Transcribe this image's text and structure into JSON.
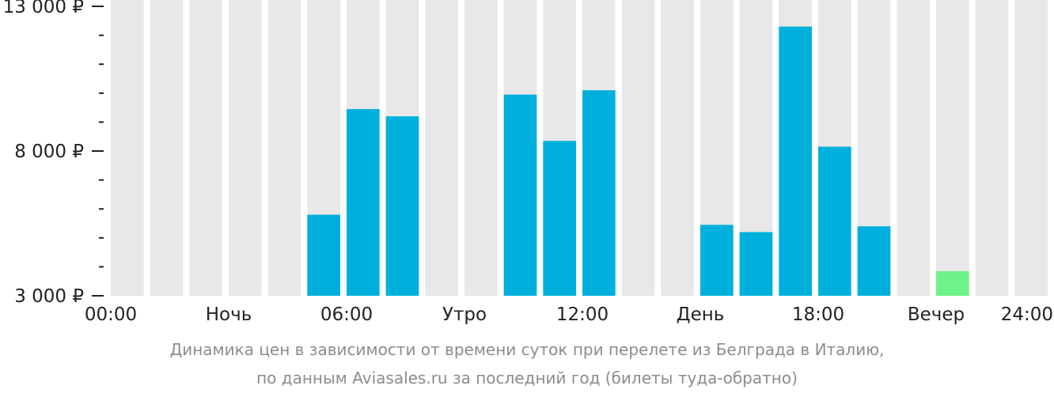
{
  "chart_data": {
    "type": "bar",
    "categories": [
      "00:00",
      "01:00",
      "02:00",
      "03:00",
      "04:00",
      "05:00",
      "06:00",
      "07:00",
      "08:00",
      "09:00",
      "10:00",
      "11:00",
      "12:00",
      "13:00",
      "14:00",
      "15:00",
      "16:00",
      "17:00",
      "18:00",
      "19:00",
      "20:00",
      "21:00",
      "22:00",
      "23:00"
    ],
    "values": [
      null,
      null,
      null,
      null,
      null,
      5800,
      9450,
      9200,
      null,
      null,
      9950,
      8350,
      10100,
      null,
      null,
      5450,
      5200,
      12300,
      8150,
      5400,
      null,
      3850,
      null,
      null
    ],
    "highlight_index": 21,
    "ylim": [
      3000,
      13000
    ],
    "yticks": [
      {
        "value": 13000,
        "label": "13 000 ₽"
      },
      {
        "value": 8000,
        "label": "8 000 ₽"
      },
      {
        "value": 3000,
        "label": "3 000 ₽"
      }
    ],
    "minor_yticks": [
      12000,
      11000,
      10000,
      9000,
      7000,
      6000,
      5000,
      4000
    ],
    "xticks": [
      {
        "position": 0,
        "label": "00:00"
      },
      {
        "position": 3,
        "label": "Ночь"
      },
      {
        "position": 6,
        "label": "06:00"
      },
      {
        "position": 9,
        "label": "Утро"
      },
      {
        "position": 12,
        "label": "12:00"
      },
      {
        "position": 15,
        "label": "День"
      },
      {
        "position": 18,
        "label": "18:00"
      },
      {
        "position": 21,
        "label": "Вечер"
      },
      {
        "position": 24,
        "label": "24:00"
      }
    ],
    "colors": {
      "bar": "#00b0dc",
      "highlight": "#6ef28a",
      "background_column": "#e8e8e8",
      "axis": "#222222"
    },
    "caption_line1": "Динамика цен в зависимости от времени суток при перелете из Белграда в Италию,",
    "caption_line2": "по данным Aviasales.ru за последний год (билеты туда-обратно)"
  }
}
